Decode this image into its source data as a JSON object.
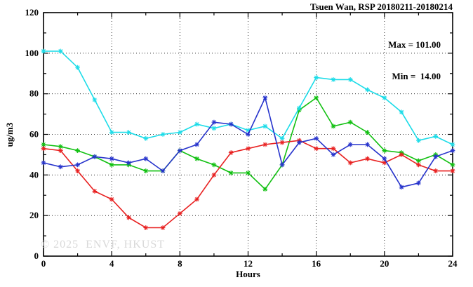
{
  "chart_data": {
    "type": "line",
    "title": "Tsuen Wan, RSP 20180211-20180214",
    "xlabel": "Hours",
    "ylabel": "ug/m3",
    "xlim": [
      0,
      24
    ],
    "ylim": [
      0,
      120
    ],
    "grid": true,
    "legend_position": "top-right-inside",
    "annotations": {
      "max_label": "Max = 101.00",
      "min_label": "Min =  14.00"
    },
    "watermark": "© 2025  ENVF, HKUST",
    "x_major_ticks": [
      0,
      4,
      8,
      12,
      16,
      20,
      24
    ],
    "x_minor_ticks": [
      2,
      6,
      10,
      14,
      18,
      22
    ],
    "y_major_ticks": [
      0,
      20,
      40,
      60,
      80,
      100,
      120
    ],
    "y_minor_ticks": [
      10,
      30,
      50,
      70,
      90,
      110
    ],
    "x": [
      0,
      1,
      2,
      3,
      4,
      5,
      6,
      7,
      8,
      9,
      10,
      11,
      12,
      13,
      14,
      15,
      16,
      17,
      18,
      19,
      20,
      21,
      22,
      23,
      24
    ],
    "series": [
      {
        "name": "green",
        "color": "#10c010",
        "values": [
          55,
          54,
          52,
          49,
          45,
          45,
          42,
          42,
          52,
          48,
          45,
          41,
          41,
          33,
          45,
          72,
          78,
          64,
          66,
          61,
          52,
          51,
          47,
          50,
          45
        ]
      },
      {
        "name": "cyan",
        "color": "#1cdce8",
        "values": [
          101,
          101,
          93,
          77,
          61,
          61,
          58,
          60,
          61,
          65,
          63,
          65,
          62,
          64,
          58,
          73,
          88,
          87,
          87,
          82,
          78,
          71,
          57,
          59,
          55
        ]
      },
      {
        "name": "red",
        "color": "#e82020",
        "values": [
          53,
          52,
          42,
          32,
          28,
          19,
          14,
          14,
          21,
          28,
          40,
          51,
          53,
          55,
          56,
          57,
          53,
          53,
          46,
          48,
          46,
          50,
          45,
          42,
          42
        ]
      },
      {
        "name": "blue",
        "color": "#2633cc",
        "values": [
          46,
          44,
          45,
          49,
          48,
          46,
          48,
          42,
          52,
          55,
          66,
          65,
          60,
          78,
          45,
          56,
          58,
          50,
          55,
          55,
          48,
          34,
          36,
          49,
          52
        ]
      }
    ]
  }
}
